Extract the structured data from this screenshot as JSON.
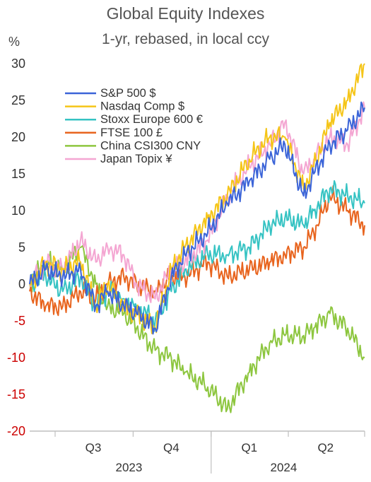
{
  "chart_data": {
    "type": "line",
    "title": "Global Equity Indexes",
    "subtitle": "1-yr, rebased, in local ccy",
    "y_unit": "%",
    "ylim": [
      -20,
      30
    ],
    "y_ticks": [
      "30",
      "25",
      "20",
      "15",
      "10",
      "5",
      "0",
      "-5",
      "-10",
      "-15",
      "-20"
    ],
    "negative_tick_color": "#cc0000",
    "x_quarter_labels": [
      "Q3",
      "Q4",
      "Q1",
      "Q2"
    ],
    "x_year_labels": [
      "2023",
      "2024"
    ],
    "grid": false,
    "legend_position": "upper-left",
    "x_domain": [
      "2023-06-01",
      "2024-06-30"
    ],
    "series": [
      {
        "name": "S&P 500 $",
        "color": "#3b64d8",
        "points": [
          [
            "2023-06-01",
            0
          ],
          [
            "2023-06-20",
            2
          ],
          [
            "2023-07-10",
            1
          ],
          [
            "2023-07-31",
            2
          ],
          [
            "2023-08-18",
            -3
          ],
          [
            "2023-09-01",
            -1
          ],
          [
            "2023-09-20",
            -3
          ],
          [
            "2023-10-05",
            -4
          ],
          [
            "2023-10-27",
            -6
          ],
          [
            "2023-11-15",
            1
          ],
          [
            "2023-12-01",
            4
          ],
          [
            "2023-12-28",
            7
          ],
          [
            "2024-01-20",
            11
          ],
          [
            "2024-02-15",
            14
          ],
          [
            "2024-03-10",
            17
          ],
          [
            "2024-03-28",
            19
          ],
          [
            "2024-04-19",
            12
          ],
          [
            "2024-05-01",
            15
          ],
          [
            "2024-05-20",
            19
          ],
          [
            "2024-06-10",
            21
          ],
          [
            "2024-06-30",
            24
          ]
        ]
      },
      {
        "name": "Nasdaq Comp $",
        "color": "#f5c518",
        "points": [
          [
            "2023-06-01",
            0
          ],
          [
            "2023-06-20",
            3
          ],
          [
            "2023-07-10",
            2
          ],
          [
            "2023-07-31",
            3
          ],
          [
            "2023-08-18",
            -3
          ],
          [
            "2023-09-01",
            0
          ],
          [
            "2023-09-20",
            -3
          ],
          [
            "2023-10-05",
            -4
          ],
          [
            "2023-10-27",
            -6
          ],
          [
            "2023-11-15",
            2
          ],
          [
            "2023-12-01",
            5
          ],
          [
            "2023-12-28",
            9
          ],
          [
            "2024-01-20",
            12
          ],
          [
            "2024-02-15",
            17
          ],
          [
            "2024-03-10",
            20
          ],
          [
            "2024-03-28",
            20
          ],
          [
            "2024-04-19",
            13
          ],
          [
            "2024-05-01",
            16
          ],
          [
            "2024-05-20",
            22
          ],
          [
            "2024-06-10",
            25
          ],
          [
            "2024-06-30",
            30
          ]
        ]
      },
      {
        "name": "Stoxx Europe 600 €",
        "color": "#36c3c3",
        "points": [
          [
            "2023-06-01",
            0
          ],
          [
            "2023-06-20",
            1
          ],
          [
            "2023-07-10",
            -1
          ],
          [
            "2023-07-31",
            1
          ],
          [
            "2023-08-18",
            -3
          ],
          [
            "2023-09-01",
            -1
          ],
          [
            "2023-09-20",
            -2
          ],
          [
            "2023-10-05",
            -3
          ],
          [
            "2023-10-27",
            -5
          ],
          [
            "2023-11-15",
            -1
          ],
          [
            "2023-12-01",
            2
          ],
          [
            "2023-12-28",
            4
          ],
          [
            "2024-01-20",
            4
          ],
          [
            "2024-02-15",
            5
          ],
          [
            "2024-03-10",
            8
          ],
          [
            "2024-03-28",
            9
          ],
          [
            "2024-04-19",
            8
          ],
          [
            "2024-05-01",
            10
          ],
          [
            "2024-05-20",
            13
          ],
          [
            "2024-06-10",
            12
          ],
          [
            "2024-06-30",
            11
          ]
        ]
      },
      {
        "name": "FTSE 100 £",
        "color": "#e8641e",
        "points": [
          [
            "2023-06-01",
            -1
          ],
          [
            "2023-06-20",
            -3
          ],
          [
            "2023-07-10",
            -3
          ],
          [
            "2023-07-31",
            -1
          ],
          [
            "2023-08-18",
            -2
          ],
          [
            "2023-09-01",
            0
          ],
          [
            "2023-09-20",
            1
          ],
          [
            "2023-10-05",
            0
          ],
          [
            "2023-10-27",
            -1
          ],
          [
            "2023-11-15",
            1
          ],
          [
            "2023-12-01",
            1
          ],
          [
            "2023-12-28",
            3
          ],
          [
            "2024-01-20",
            1
          ],
          [
            "2024-02-15",
            2
          ],
          [
            "2024-03-10",
            3
          ],
          [
            "2024-03-28",
            4
          ],
          [
            "2024-04-19",
            5
          ],
          [
            "2024-05-01",
            7
          ],
          [
            "2024-05-20",
            12
          ],
          [
            "2024-06-10",
            10
          ],
          [
            "2024-06-30",
            8
          ]
        ]
      },
      {
        "name": "China CSI300 CNY",
        "color": "#8dc63f",
        "points": [
          [
            "2023-06-01",
            0
          ],
          [
            "2023-06-20",
            3
          ],
          [
            "2023-07-10",
            2
          ],
          [
            "2023-07-31",
            5
          ],
          [
            "2023-08-18",
            0
          ],
          [
            "2023-09-01",
            -3
          ],
          [
            "2023-09-20",
            -4
          ],
          [
            "2023-10-05",
            -6
          ],
          [
            "2023-10-27",
            -9
          ],
          [
            "2023-11-15",
            -10
          ],
          [
            "2023-12-01",
            -12
          ],
          [
            "2023-12-28",
            -14
          ],
          [
            "2024-01-20",
            -17
          ],
          [
            "2024-02-15",
            -12
          ],
          [
            "2024-03-10",
            -8
          ],
          [
            "2024-03-28",
            -7
          ],
          [
            "2024-04-19",
            -7
          ],
          [
            "2024-05-01",
            -6
          ],
          [
            "2024-05-20",
            -4
          ],
          [
            "2024-06-10",
            -6
          ],
          [
            "2024-06-30",
            -10
          ]
        ]
      },
      {
        "name": "Japan Topix ¥",
        "color": "#f4a6d2",
        "points": [
          [
            "2023-06-01",
            0
          ],
          [
            "2023-06-20",
            3
          ],
          [
            "2023-07-10",
            2
          ],
          [
            "2023-07-31",
            6
          ],
          [
            "2023-08-18",
            3
          ],
          [
            "2023-09-01",
            5
          ],
          [
            "2023-09-20",
            4
          ],
          [
            "2023-10-05",
            0
          ],
          [
            "2023-10-27",
            -2
          ],
          [
            "2023-11-15",
            2
          ],
          [
            "2023-12-01",
            3
          ],
          [
            "2023-12-28",
            6
          ],
          [
            "2024-01-20",
            12
          ],
          [
            "2024-02-15",
            16
          ],
          [
            "2024-03-10",
            19
          ],
          [
            "2024-03-28",
            22
          ],
          [
            "2024-04-19",
            15
          ],
          [
            "2024-05-01",
            17
          ],
          [
            "2024-05-20",
            20
          ],
          [
            "2024-06-10",
            19
          ],
          [
            "2024-06-30",
            24
          ]
        ]
      }
    ]
  }
}
